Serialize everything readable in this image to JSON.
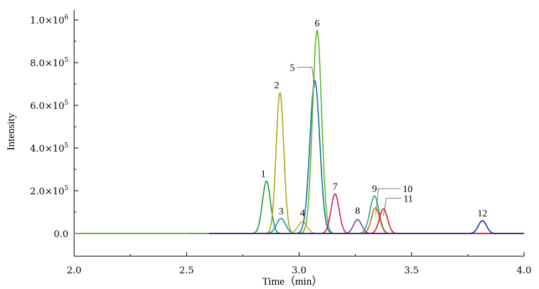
{
  "chart_data": {
    "type": "line",
    "title": "",
    "xlabel": "Time（min）",
    "ylabel": "Intensity",
    "xlim": [
      2.0,
      4.0
    ],
    "ylim": [
      -100000,
      1000000
    ],
    "x_ticks": [
      2.0,
      2.5,
      3.0,
      3.5,
      4.0
    ],
    "x_tick_labels": [
      "2.0",
      "2.5",
      "3.0",
      "3.5",
      "4.0"
    ],
    "y_ticks": [
      0,
      200000,
      400000,
      600000,
      800000,
      1000000
    ],
    "y_tick_labels": [
      {
        "mantissa": "0.0",
        "exp": ""
      },
      {
        "mantissa": "2.0×10",
        "exp": "5"
      },
      {
        "mantissa": "4.0×10",
        "exp": "5"
      },
      {
        "mantissa": "6.0×10",
        "exp": "5"
      },
      {
        "mantissa": "8.0×10",
        "exp": "5"
      },
      {
        "mantissa": "1.0×10",
        "exp": "6"
      }
    ],
    "grid": false,
    "legend": "none",
    "series": [
      {
        "label": "1",
        "color": "#1a9e3a",
        "peak_time": 2.855,
        "peak_height": 245000,
        "width": 0.018,
        "start": 2.0,
        "end": 4.0
      },
      {
        "label": "2",
        "color": "#b0a81e",
        "peak_time": 2.915,
        "peak_height": 660000,
        "width": 0.017,
        "start": 2.0,
        "end": 4.0
      },
      {
        "label": "3",
        "color": "#1c8f8f",
        "peak_time": 2.92,
        "peak_height": 70000,
        "width": 0.02,
        "start": 2.5,
        "end": 4.0
      },
      {
        "label": "4",
        "color": "#e0a030",
        "peak_time": 3.015,
        "peak_height": 55000,
        "width": 0.02,
        "start": 2.5,
        "end": 4.0
      },
      {
        "label": "5",
        "color": "#1a6fa0",
        "peak_time": 3.07,
        "peak_height": 715000,
        "width": 0.022,
        "start": 2.5,
        "end": 4.0
      },
      {
        "label": "6",
        "color": "#5cb82e",
        "peak_time": 3.08,
        "peak_height": 950000,
        "width": 0.02,
        "start": 2.0,
        "end": 4.0
      },
      {
        "label": "7",
        "color": "#d81b60",
        "peak_time": 3.16,
        "peak_height": 185000,
        "width": 0.018,
        "start": 2.6,
        "end": 4.0
      },
      {
        "label": "8",
        "color": "#7b3fa0",
        "peak_time": 3.26,
        "peak_height": 65000,
        "width": 0.018,
        "start": 2.6,
        "end": 4.0
      },
      {
        "label": "9",
        "color": "#22a88a",
        "peak_time": 3.335,
        "peak_height": 175000,
        "width": 0.02,
        "start": 2.6,
        "end": 4.0
      },
      {
        "label": "10",
        "color": "#d2691e",
        "peak_time": 3.34,
        "peak_height": 120000,
        "width": 0.018,
        "start": 2.6,
        "end": 4.0
      },
      {
        "label": "11",
        "color": "#e02020",
        "peak_time": 3.375,
        "peak_height": 115000,
        "width": 0.018,
        "start": 2.6,
        "end": 4.0
      },
      {
        "label": "12",
        "color": "#1a2fa0",
        "peak_time": 3.815,
        "peak_height": 60000,
        "width": 0.018,
        "start": 2.6,
        "end": 4.0
      }
    ]
  }
}
